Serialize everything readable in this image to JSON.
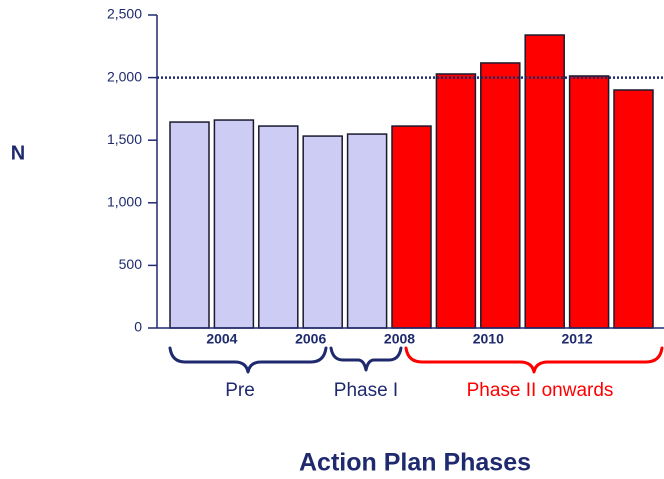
{
  "chart_data": {
    "type": "bar",
    "categories": [
      null,
      "2004",
      null,
      "2006",
      null,
      "2008",
      null,
      "2010",
      null,
      "2012",
      null
    ],
    "values": [
      1645,
      1661,
      1613,
      1533,
      1549,
      1613,
      2029,
      2117,
      2340,
      2013,
      1901
    ],
    "colors": [
      "#ccccf5",
      "#ccccf5",
      "#ccccf5",
      "#ccccf5",
      "#ccccf5",
      "#ff0000",
      "#ff0000",
      "#ff0000",
      "#ff0000",
      "#ff0000",
      "#ff0000"
    ],
    "ylim": [
      0,
      2500
    ],
    "yticks": [
      0,
      500,
      {
        "value": 1000,
        "label": "1,000"
      },
      {
        "value": 1500,
        "label": "1,500"
      },
      {
        "value": 2000,
        "label": "2,000"
      },
      {
        "value": 2500,
        "label": "2,500"
      }
    ],
    "reference_line": 2000,
    "y_label": "N",
    "x_label": "Action Plan Phases",
    "phases": [
      "Pre",
      "Phase I",
      "Phase II onwards"
    ]
  }
}
